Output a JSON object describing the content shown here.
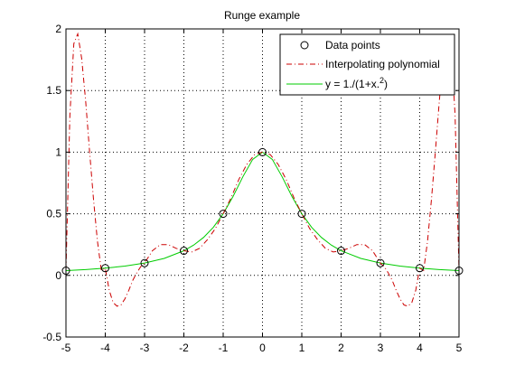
{
  "chart_data": {
    "type": "line",
    "title": "Runge example",
    "xlabel": "",
    "ylabel": "",
    "xlim": [
      -5,
      5
    ],
    "ylim": [
      -0.5,
      2
    ],
    "xticks": [
      "-5",
      "-4",
      "-3",
      "-2",
      "-1",
      "0",
      "1",
      "2",
      "3",
      "4",
      "5"
    ],
    "yticks": [
      "-0.5",
      "0",
      "0.5",
      "1",
      "1.5",
      "2"
    ],
    "grid": true,
    "legend_position": "top-right",
    "series": [
      {
        "name": "Data points",
        "kind": "markers",
        "marker": "circle",
        "color": "#000000",
        "x": [
          -5,
          -4,
          -3,
          -2,
          -1,
          0,
          1,
          2,
          3,
          4,
          5
        ],
        "y": [
          0.0385,
          0.0588,
          0.1,
          0.2,
          0.5,
          1,
          0.5,
          0.2,
          0.1,
          0.0588,
          0.0385
        ]
      },
      {
        "name": "Interpolating polynomial",
        "kind": "line",
        "style": "dash-dot",
        "color": "#cc0000",
        "x": [
          -5,
          -4.9,
          -4.8,
          -4.7,
          -4.6,
          -4.5,
          -4.4,
          -4.3,
          -4.2,
          -4.1,
          -4,
          -3.9,
          -3.8,
          -3.7,
          -3.6,
          -3.5,
          -3.4,
          -3.3,
          -3.2,
          -3.1,
          -3,
          -2.8,
          -2.6,
          -2.4,
          -2.2,
          -2,
          -1.8,
          -1.6,
          -1.4,
          -1.2,
          -1,
          -0.8,
          -0.6,
          -0.4,
          -0.2,
          0,
          0.2,
          0.4,
          0.6,
          0.8,
          1,
          1.2,
          1.4,
          1.6,
          1.8,
          2,
          2.2,
          2.4,
          2.6,
          2.8,
          3,
          3.1,
          3.2,
          3.3,
          3.4,
          3.5,
          3.6,
          3.7,
          3.8,
          3.9,
          4,
          4.1,
          4.2,
          4.3,
          4.4,
          4.5,
          4.6,
          4.7,
          4.8,
          4.9,
          5
        ],
        "y": [
          0.0385,
          1.3,
          1.88,
          1.96,
          1.76,
          1.42,
          1.01,
          0.62,
          0.28,
          0.04,
          0.0588,
          -0.12,
          -0.22,
          -0.25,
          -0.24,
          -0.19,
          -0.12,
          -0.04,
          0.02,
          0.07,
          0.1,
          0.2,
          0.25,
          0.25,
          0.22,
          0.2,
          0.19,
          0.22,
          0.29,
          0.38,
          0.5,
          0.63,
          0.78,
          0.9,
          0.98,
          1,
          0.98,
          0.9,
          0.78,
          0.63,
          0.5,
          0.38,
          0.29,
          0.22,
          0.19,
          0.2,
          0.22,
          0.25,
          0.25,
          0.2,
          0.1,
          0.07,
          0.02,
          -0.04,
          -0.12,
          -0.19,
          -0.24,
          -0.25,
          -0.22,
          -0.12,
          0.0588,
          0.04,
          0.28,
          0.62,
          1.01,
          1.42,
          1.76,
          1.96,
          1.88,
          1.3,
          0.0385
        ]
      },
      {
        "name": "y = 1./(1+x.^2)",
        "legend_text": "y = 1./(1+x.",
        "legend_sup": "2",
        "legend_tail": ")",
        "kind": "line",
        "style": "solid",
        "color": "#00cc00",
        "x": [
          -5,
          -4.5,
          -4,
          -3.5,
          -3,
          -2.5,
          -2,
          -1.75,
          -1.5,
          -1.25,
          -1,
          -0.75,
          -0.5,
          -0.25,
          0,
          0.25,
          0.5,
          0.75,
          1,
          1.25,
          1.5,
          1.75,
          2,
          2.5,
          3,
          3.5,
          4,
          4.5,
          5
        ],
        "y": [
          0.0385,
          0.0471,
          0.0588,
          0.0755,
          0.1,
          0.1379,
          0.2,
          0.2462,
          0.3077,
          0.3902,
          0.5,
          0.64,
          0.8,
          0.9412,
          1,
          0.9412,
          0.8,
          0.64,
          0.5,
          0.3902,
          0.3077,
          0.2462,
          0.2,
          0.1379,
          0.1,
          0.0755,
          0.0588,
          0.0471,
          0.0385
        ]
      }
    ]
  }
}
